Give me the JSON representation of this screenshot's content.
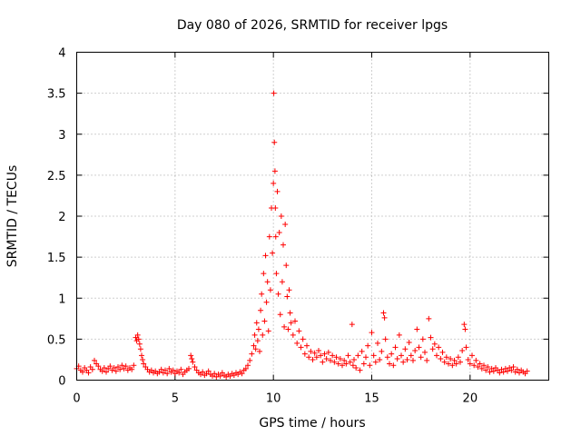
{
  "chart_data": {
    "type": "scatter",
    "title": "Day 080 of 2026, SRMTID for receiver lpgs",
    "xlabel": "GPS time / hours",
    "ylabel": "SRMTID / TECUs",
    "xlim": [
      0,
      24
    ],
    "ylim": [
      0,
      4
    ],
    "xticks": [
      0,
      5,
      10,
      15,
      20
    ],
    "yticks": [
      0,
      0.5,
      1,
      1.5,
      2,
      2.5,
      3,
      3.5,
      4
    ],
    "ytick_labels": [
      "0",
      "0.5",
      "1",
      "1.5",
      "2",
      "2.5",
      "3",
      "3.5",
      "4"
    ],
    "grid": true,
    "marker": "plus",
    "color": "#ff0000",
    "series": [
      {
        "name": "SRMTID",
        "points": [
          [
            0.0,
            0.14
          ],
          [
            0.1,
            0.17
          ],
          [
            0.2,
            0.12
          ],
          [
            0.3,
            0.1
          ],
          [
            0.4,
            0.15
          ],
          [
            0.5,
            0.12
          ],
          [
            0.6,
            0.09
          ],
          [
            0.7,
            0.16
          ],
          [
            0.8,
            0.13
          ],
          [
            0.9,
            0.24
          ],
          [
            1.0,
            0.2
          ],
          [
            1.1,
            0.17
          ],
          [
            1.2,
            0.13
          ],
          [
            1.3,
            0.11
          ],
          [
            1.4,
            0.15
          ],
          [
            1.5,
            0.1
          ],
          [
            1.6,
            0.14
          ],
          [
            1.7,
            0.17
          ],
          [
            1.8,
            0.12
          ],
          [
            1.9,
            0.15
          ],
          [
            2.0,
            0.11
          ],
          [
            2.1,
            0.16
          ],
          [
            2.2,
            0.13
          ],
          [
            2.3,
            0.18
          ],
          [
            2.4,
            0.14
          ],
          [
            2.5,
            0.17
          ],
          [
            2.6,
            0.12
          ],
          [
            2.7,
            0.15
          ],
          [
            2.8,
            0.13
          ],
          [
            2.9,
            0.18
          ],
          [
            3.0,
            0.52
          ],
          [
            3.05,
            0.48
          ],
          [
            3.1,
            0.55
          ],
          [
            3.15,
            0.5
          ],
          [
            3.2,
            0.44
          ],
          [
            3.25,
            0.38
          ],
          [
            3.3,
            0.3
          ],
          [
            3.35,
            0.25
          ],
          [
            3.4,
            0.2
          ],
          [
            3.5,
            0.16
          ],
          [
            3.6,
            0.13
          ],
          [
            3.7,
            0.1
          ],
          [
            3.8,
            0.12
          ],
          [
            3.9,
            0.09
          ],
          [
            4.0,
            0.11
          ],
          [
            4.1,
            0.08
          ],
          [
            4.2,
            0.1
          ],
          [
            4.3,
            0.13
          ],
          [
            4.4,
            0.09
          ],
          [
            4.5,
            0.12
          ],
          [
            4.6,
            0.08
          ],
          [
            4.7,
            0.14
          ],
          [
            4.8,
            0.1
          ],
          [
            4.9,
            0.12
          ],
          [
            5.0,
            0.08
          ],
          [
            5.1,
            0.11
          ],
          [
            5.2,
            0.09
          ],
          [
            5.3,
            0.13
          ],
          [
            5.4,
            0.07
          ],
          [
            5.5,
            0.1
          ],
          [
            5.6,
            0.12
          ],
          [
            5.7,
            0.14
          ],
          [
            5.8,
            0.3
          ],
          [
            5.85,
            0.26
          ],
          [
            5.9,
            0.22
          ],
          [
            6.0,
            0.16
          ],
          [
            6.1,
            0.12
          ],
          [
            6.2,
            0.09
          ],
          [
            6.3,
            0.07
          ],
          [
            6.4,
            0.1
          ],
          [
            6.5,
            0.06
          ],
          [
            6.6,
            0.08
          ],
          [
            6.7,
            0.11
          ],
          [
            6.8,
            0.07
          ],
          [
            6.9,
            0.05
          ],
          [
            7.0,
            0.08
          ],
          [
            7.1,
            0.04
          ],
          [
            7.2,
            0.07
          ],
          [
            7.3,
            0.05
          ],
          [
            7.4,
            0.09
          ],
          [
            7.5,
            0.06
          ],
          [
            7.6,
            0.04
          ],
          [
            7.7,
            0.07
          ],
          [
            7.8,
            0.05
          ],
          [
            7.9,
            0.08
          ],
          [
            8.0,
            0.06
          ],
          [
            8.1,
            0.09
          ],
          [
            8.2,
            0.07
          ],
          [
            8.3,
            0.1
          ],
          [
            8.4,
            0.08
          ],
          [
            8.5,
            0.12
          ],
          [
            8.6,
            0.14
          ],
          [
            8.7,
            0.18
          ],
          [
            8.8,
            0.24
          ],
          [
            8.9,
            0.32
          ],
          [
            9.0,
            0.42
          ],
          [
            9.05,
            0.55
          ],
          [
            9.1,
            0.38
          ],
          [
            9.15,
            0.7
          ],
          [
            9.2,
            0.48
          ],
          [
            9.25,
            0.62
          ],
          [
            9.3,
            0.35
          ],
          [
            9.35,
            0.85
          ],
          [
            9.4,
            1.05
          ],
          [
            9.45,
            0.55
          ],
          [
            9.5,
            1.3
          ],
          [
            9.55,
            0.72
          ],
          [
            9.6,
            1.52
          ],
          [
            9.65,
            0.95
          ],
          [
            9.7,
            1.2
          ],
          [
            9.75,
            0.6
          ],
          [
            9.8,
            1.75
          ],
          [
            9.85,
            1.1
          ],
          [
            9.9,
            2.1
          ],
          [
            9.95,
            1.55
          ],
          [
            10.0,
            2.4
          ],
          [
            10.02,
            3.5
          ],
          [
            10.05,
            2.9
          ],
          [
            10.08,
            2.55
          ],
          [
            10.1,
            2.1
          ],
          [
            10.12,
            1.75
          ],
          [
            10.15,
            1.3
          ],
          [
            10.2,
            2.3
          ],
          [
            10.25,
            1.05
          ],
          [
            10.3,
            1.8
          ],
          [
            10.35,
            0.8
          ],
          [
            10.4,
            2.0
          ],
          [
            10.45,
            1.2
          ],
          [
            10.5,
            1.65
          ],
          [
            10.55,
            0.65
          ],
          [
            10.6,
            1.9
          ],
          [
            10.65,
            1.4
          ],
          [
            10.7,
            1.02
          ],
          [
            10.75,
            0.62
          ],
          [
            10.8,
            1.1
          ],
          [
            10.85,
            0.82
          ],
          [
            10.9,
            0.7
          ],
          [
            11.0,
            0.55
          ],
          [
            11.1,
            0.72
          ],
          [
            11.2,
            0.45
          ],
          [
            11.3,
            0.6
          ],
          [
            11.4,
            0.4
          ],
          [
            11.5,
            0.5
          ],
          [
            11.6,
            0.32
          ],
          [
            11.7,
            0.42
          ],
          [
            11.8,
            0.28
          ],
          [
            11.9,
            0.35
          ],
          [
            12.0,
            0.25
          ],
          [
            12.1,
            0.33
          ],
          [
            12.2,
            0.28
          ],
          [
            12.3,
            0.36
          ],
          [
            12.4,
            0.3
          ],
          [
            12.5,
            0.22
          ],
          [
            12.6,
            0.32
          ],
          [
            12.7,
            0.26
          ],
          [
            12.8,
            0.34
          ],
          [
            12.9,
            0.24
          ],
          [
            13.0,
            0.3
          ],
          [
            13.1,
            0.22
          ],
          [
            13.2,
            0.28
          ],
          [
            13.3,
            0.2
          ],
          [
            13.4,
            0.26
          ],
          [
            13.5,
            0.18
          ],
          [
            13.6,
            0.24
          ],
          [
            13.7,
            0.2
          ],
          [
            13.8,
            0.3
          ],
          [
            13.9,
            0.22
          ],
          [
            14.0,
            0.68
          ],
          [
            14.05,
            0.18
          ],
          [
            14.1,
            0.25
          ],
          [
            14.2,
            0.15
          ],
          [
            14.3,
            0.3
          ],
          [
            14.4,
            0.12
          ],
          [
            14.5,
            0.35
          ],
          [
            14.6,
            0.2
          ],
          [
            14.7,
            0.28
          ],
          [
            14.8,
            0.42
          ],
          [
            14.9,
            0.18
          ],
          [
            15.0,
            0.58
          ],
          [
            15.1,
            0.3
          ],
          [
            15.2,
            0.22
          ],
          [
            15.3,
            0.45
          ],
          [
            15.4,
            0.25
          ],
          [
            15.5,
            0.35
          ],
          [
            15.6,
            0.82
          ],
          [
            15.65,
            0.76
          ],
          [
            15.7,
            0.5
          ],
          [
            15.8,
            0.28
          ],
          [
            15.9,
            0.2
          ],
          [
            16.0,
            0.32
          ],
          [
            16.1,
            0.18
          ],
          [
            16.2,
            0.4
          ],
          [
            16.3,
            0.26
          ],
          [
            16.4,
            0.55
          ],
          [
            16.5,
            0.3
          ],
          [
            16.6,
            0.22
          ],
          [
            16.7,
            0.38
          ],
          [
            16.8,
            0.25
          ],
          [
            16.9,
            0.46
          ],
          [
            17.0,
            0.3
          ],
          [
            17.1,
            0.24
          ],
          [
            17.2,
            0.36
          ],
          [
            17.3,
            0.62
          ],
          [
            17.4,
            0.4
          ],
          [
            17.5,
            0.28
          ],
          [
            17.6,
            0.5
          ],
          [
            17.7,
            0.34
          ],
          [
            17.8,
            0.24
          ],
          [
            17.9,
            0.75
          ],
          [
            18.0,
            0.52
          ],
          [
            18.1,
            0.38
          ],
          [
            18.2,
            0.44
          ],
          [
            18.3,
            0.3
          ],
          [
            18.4,
            0.4
          ],
          [
            18.5,
            0.26
          ],
          [
            18.6,
            0.34
          ],
          [
            18.7,
            0.22
          ],
          [
            18.8,
            0.28
          ],
          [
            18.9,
            0.2
          ],
          [
            19.0,
            0.26
          ],
          [
            19.1,
            0.18
          ],
          [
            19.2,
            0.24
          ],
          [
            19.3,
            0.2
          ],
          [
            19.4,
            0.28
          ],
          [
            19.5,
            0.22
          ],
          [
            19.6,
            0.36
          ],
          [
            19.7,
            0.68
          ],
          [
            19.75,
            0.62
          ],
          [
            19.8,
            0.4
          ],
          [
            19.9,
            0.25
          ],
          [
            20.0,
            0.2
          ],
          [
            20.1,
            0.3
          ],
          [
            20.2,
            0.18
          ],
          [
            20.3,
            0.24
          ],
          [
            20.4,
            0.16
          ],
          [
            20.5,
            0.2
          ],
          [
            20.6,
            0.14
          ],
          [
            20.7,
            0.18
          ],
          [
            20.8,
            0.12
          ],
          [
            20.9,
            0.16
          ],
          [
            21.0,
            0.1
          ],
          [
            21.1,
            0.14
          ],
          [
            21.2,
            0.11
          ],
          [
            21.3,
            0.15
          ],
          [
            21.4,
            0.12
          ],
          [
            21.5,
            0.09
          ],
          [
            21.6,
            0.13
          ],
          [
            21.7,
            0.1
          ],
          [
            21.8,
            0.14
          ],
          [
            21.9,
            0.11
          ],
          [
            22.0,
            0.15
          ],
          [
            22.1,
            0.12
          ],
          [
            22.2,
            0.16
          ],
          [
            22.3,
            0.1
          ],
          [
            22.4,
            0.13
          ],
          [
            22.5,
            0.09
          ],
          [
            22.6,
            0.12
          ],
          [
            22.7,
            0.1
          ],
          [
            22.8,
            0.08
          ],
          [
            22.9,
            0.11
          ]
        ]
      }
    ]
  }
}
